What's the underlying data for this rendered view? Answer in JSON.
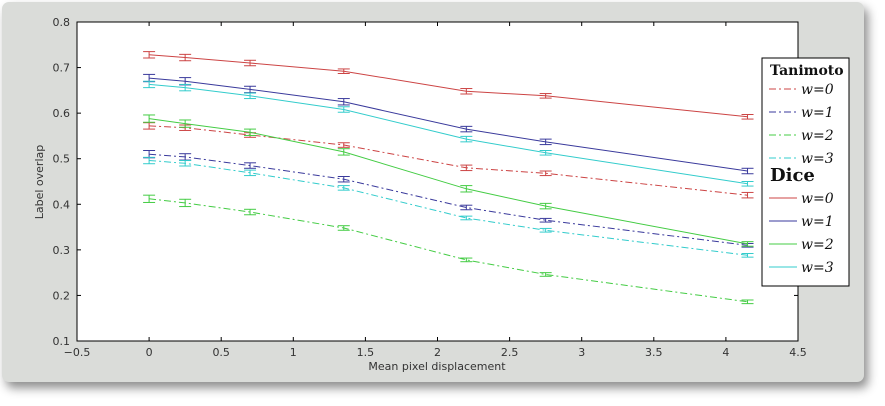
{
  "chart_data": {
    "type": "line",
    "title": "",
    "xlabel": "Mean pixel displacement",
    "ylabel": "Label overlap",
    "xlim": [
      -0.5,
      4.5
    ],
    "ylim": [
      0.1,
      0.8
    ],
    "xticks": [
      -0.5,
      0,
      0.5,
      1,
      1.5,
      2,
      2.5,
      3,
      3.5,
      4,
      4.5
    ],
    "xtick_labels": [
      "−0.5",
      "0",
      "0.5",
      "1",
      "1.5",
      "2",
      "2.5",
      "3",
      "3.5",
      "4",
      "4.5"
    ],
    "yticks": [
      0.1,
      0.2,
      0.3,
      0.4,
      0.5,
      0.6,
      0.7,
      0.8
    ],
    "ytick_labels": [
      "0.1",
      "0.2",
      "0.3",
      "0.4",
      "0.5",
      "0.6",
      "0.7",
      "0.8"
    ],
    "grid": false,
    "legend_position": "right",
    "x": [
      0.0,
      0.25,
      0.7,
      1.35,
      2.2,
      2.75,
      4.15
    ],
    "legend_groups": [
      {
        "heading": "Tanimoto",
        "labels": [
          "w=0",
          "w=1",
          "w=2",
          "w=3"
        ]
      },
      {
        "heading": "Dice",
        "labels": [
          "w=0",
          "w=1",
          "w=2",
          "w=3"
        ]
      }
    ],
    "series": [
      {
        "group": 0,
        "dash": "dashdot",
        "color": "#cc4444",
        "values": [
          0.572,
          0.568,
          0.552,
          0.53,
          0.48,
          0.468,
          0.42
        ],
        "errors": [
          0.007,
          0.006,
          0.005,
          0.005,
          0.006,
          0.005,
          0.006
        ]
      },
      {
        "group": 0,
        "dash": "dashdot",
        "color": "#3a3a9c",
        "values": [
          0.51,
          0.504,
          0.485,
          0.455,
          0.393,
          0.365,
          0.31
        ],
        "errors": [
          0.008,
          0.007,
          0.006,
          0.006,
          0.005,
          0.004,
          0.004
        ]
      },
      {
        "group": 0,
        "dash": "dashdot",
        "color": "#44cc44",
        "values": [
          0.412,
          0.403,
          0.383,
          0.348,
          0.278,
          0.246,
          0.186
        ],
        "errors": [
          0.008,
          0.008,
          0.006,
          0.005,
          0.004,
          0.004,
          0.004
        ]
      },
      {
        "group": 0,
        "dash": "dashdot",
        "color": "#33cccc",
        "values": [
          0.496,
          0.49,
          0.469,
          0.436,
          0.37,
          0.343,
          0.288
        ],
        "errors": [
          0.007,
          0.006,
          0.006,
          0.005,
          0.004,
          0.004,
          0.004
        ]
      },
      {
        "group": 1,
        "dash": "solid",
        "color": "#cc4444",
        "values": [
          0.728,
          0.722,
          0.71,
          0.692,
          0.648,
          0.638,
          0.592
        ],
        "errors": [
          0.007,
          0.007,
          0.006,
          0.005,
          0.006,
          0.005,
          0.005
        ]
      },
      {
        "group": 1,
        "dash": "solid",
        "color": "#3a3a9c",
        "values": [
          0.677,
          0.67,
          0.652,
          0.625,
          0.565,
          0.537,
          0.473
        ],
        "errors": [
          0.008,
          0.008,
          0.007,
          0.007,
          0.006,
          0.006,
          0.006
        ]
      },
      {
        "group": 1,
        "dash": "solid",
        "color": "#44cc44",
        "values": [
          0.588,
          0.577,
          0.558,
          0.515,
          0.434,
          0.396,
          0.313
        ],
        "errors": [
          0.008,
          0.008,
          0.007,
          0.007,
          0.007,
          0.006,
          0.005
        ]
      },
      {
        "group": 1,
        "dash": "solid",
        "color": "#33cccc",
        "values": [
          0.663,
          0.656,
          0.638,
          0.608,
          0.543,
          0.513,
          0.445
        ],
        "errors": [
          0.007,
          0.007,
          0.006,
          0.006,
          0.006,
          0.005,
          0.005
        ]
      }
    ]
  }
}
